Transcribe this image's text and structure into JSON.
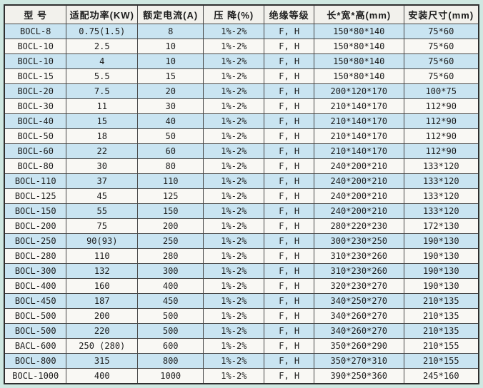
{
  "theme": {
    "page_bg": "#cfe8e1",
    "header_bg": "#f2f1ec",
    "row_odd": "#c9e4f1",
    "row_even": "#f9f8f4",
    "border_dark": "#2f2f2f",
    "border_inner": "#474747",
    "text": "#1c1c1c"
  },
  "table": {
    "columns": [
      "型 号",
      "适配功率(KW)",
      "额定电流(A)",
      "压 降(%)",
      "绝缘等级",
      "长*宽*高(mm)",
      "安装尺寸(mm)"
    ],
    "rows": [
      [
        "BOCL-8",
        "0.75(1.5)",
        "8",
        "1%-2%",
        "F, H",
        "150*80*140",
        "75*60"
      ],
      [
        "BOCL-10",
        "2.5",
        "10",
        "1%-2%",
        "F, H",
        "150*80*140",
        "75*60"
      ],
      [
        "BOCL-10",
        "4",
        "10",
        "1%-2%",
        "F, H",
        "150*80*140",
        "75*60"
      ],
      [
        "BOCL-15",
        "5.5",
        "15",
        "1%-2%",
        "F, H",
        "150*80*140",
        "75*60"
      ],
      [
        "BOCL-20",
        "7.5",
        "20",
        "1%-2%",
        "F, H",
        "200*120*170",
        "100*75"
      ],
      [
        "BOCL-30",
        "11",
        "30",
        "1%-2%",
        "F, H",
        "210*140*170",
        "112*90"
      ],
      [
        "BOCL-40",
        "15",
        "40",
        "1%-2%",
        "F, H",
        "210*140*170",
        "112*90"
      ],
      [
        "BOCL-50",
        "18",
        "50",
        "1%-2%",
        "F, H",
        "210*140*170",
        "112*90"
      ],
      [
        "BOCL-60",
        "22",
        "60",
        "1%-2%",
        "F, H",
        "210*140*170",
        "112*90"
      ],
      [
        "BOCL-80",
        "30",
        "80",
        "1%-2%",
        "F, H",
        "240*200*210",
        "133*120"
      ],
      [
        "BOCL-110",
        "37",
        "110",
        "1%-2%",
        "F, H",
        "240*200*210",
        "133*120"
      ],
      [
        "BOCL-125",
        "45",
        "125",
        "1%-2%",
        "F, H",
        "240*200*210",
        "133*120"
      ],
      [
        "BOCL-150",
        "55",
        "150",
        "1%-2%",
        "F, H",
        "240*200*210",
        "133*120"
      ],
      [
        "BOCL-200",
        "75",
        "200",
        "1%-2%",
        "F, H",
        "280*220*230",
        "172*130"
      ],
      [
        "BOCL-250",
        "90(93)",
        "250",
        "1%-2%",
        "F, H",
        "300*230*250",
        "190*130"
      ],
      [
        "BOCL-280",
        "110",
        "280",
        "1%-2%",
        "F, H",
        "310*230*260",
        "190*130"
      ],
      [
        "BOCL-300",
        "132",
        "300",
        "1%-2%",
        "F, H",
        "310*230*260",
        "190*130"
      ],
      [
        "BOCL-400",
        "160",
        "400",
        "1%-2%",
        "F, H",
        "320*230*270",
        "190*130"
      ],
      [
        "BOCL-450",
        "187",
        "450",
        "1%-2%",
        "F, H",
        "340*250*270",
        "210*135"
      ],
      [
        "BOCL-500",
        "200",
        "500",
        "1%-2%",
        "F, H",
        "340*260*270",
        "210*135"
      ],
      [
        "BOCL-500",
        "220",
        "500",
        "1%-2%",
        "F, H",
        "340*260*270",
        "210*135"
      ],
      [
        "BACL-600",
        "250 (280)",
        "600",
        "1%-2%",
        "F, H",
        "350*260*290",
        "210*155"
      ],
      [
        "BOCL-800",
        "315",
        "800",
        "1%-2%",
        "F, H",
        "350*270*310",
        "210*155"
      ],
      [
        "BOCL-1000",
        "400",
        "1000",
        "1%-2%",
        "F, H",
        "390*250*360",
        "245*160"
      ]
    ]
  },
  "chart_data": {
    "type": "table",
    "title": "BOCL reactor specification table",
    "columns": [
      "型 号",
      "适配功率(KW)",
      "额定电流(A)",
      "压 降(%)",
      "绝缘等级",
      "长*宽*高(mm)",
      "安装尺寸(mm)"
    ]
  }
}
